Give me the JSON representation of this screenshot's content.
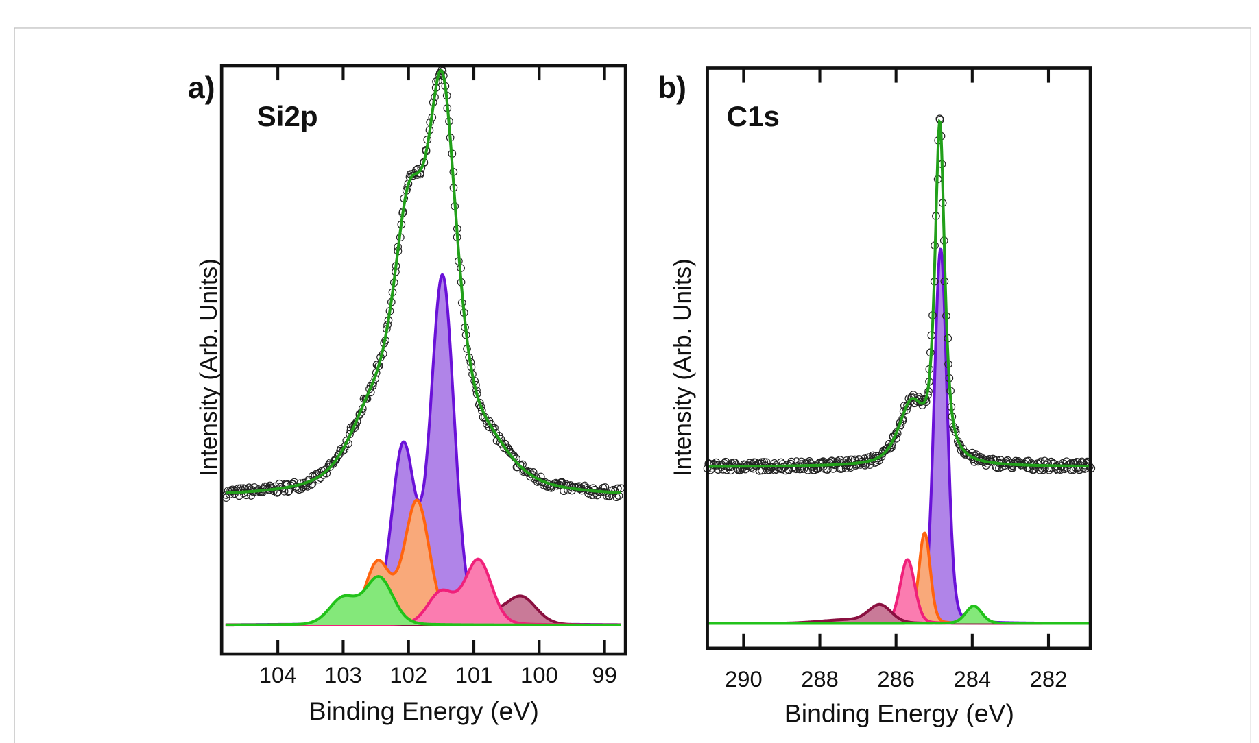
{
  "chart_data": [
    {
      "type": "line",
      "panel_label": "a)",
      "title": "Si2p",
      "xlabel": "Binding Energy (eV)",
      "ylabel": "Intensity (Arb. Units)",
      "xlim": [
        104.86,
        98.68
      ],
      "ylim": [
        0,
        100
      ],
      "x_reversed": true,
      "grid": false,
      "xticks": [
        "104",
        "103",
        "102",
        "101",
        "100",
        "99"
      ],
      "xtick_values": [
        104,
        103,
        102,
        101,
        100,
        99
      ],
      "envelope": {
        "color": "#22a01a",
        "offset": 26.6,
        "peaks": [
          {
            "center": 101.48,
            "amplitude": 62,
            "fwhm": 0.55,
            "eta": 0.6
          },
          {
            "center": 102.0,
            "amplitude": 40,
            "fwhm": 0.6,
            "eta": 0.6
          },
          {
            "center": 102.6,
            "amplitude": 10,
            "fwhm": 0.8,
            "eta": 0.6
          },
          {
            "center": 100.8,
            "amplitude": 6,
            "fwhm": 0.9,
            "eta": 0.6
          }
        ],
        "x_range": [
          104.8,
          98.75
        ]
      },
      "components_baseline": 4.9,
      "components": [
        {
          "stroke": "#6a12d8",
          "fill": "#b084e8",
          "peaks": [
            {
              "center": 101.48,
              "amplitude": 59,
              "fwhm": 0.42
            },
            {
              "center": 102.08,
              "amplitude": 30,
              "fwhm": 0.42
            }
          ]
        },
        {
          "stroke": "#ff640f",
          "fill": "#f9a97a",
          "peaks": [
            {
              "center": 101.87,
              "amplitude": 21,
              "fwhm": 0.45
            },
            {
              "center": 102.47,
              "amplitude": 10.5,
              "fwhm": 0.45
            }
          ]
        },
        {
          "stroke": "#8a1040",
          "fill": "#c97a98",
          "peaks": [
            {
              "center": 100.28,
              "amplitude": 4.8,
              "fwhm": 0.55
            },
            {
              "center": 100.85,
              "amplitude": 2.2,
              "fwhm": 0.55
            }
          ]
        },
        {
          "stroke": "#f0207a",
          "fill": "#fb7cb0",
          "peaks": [
            {
              "center": 100.93,
              "amplitude": 11,
              "fwhm": 0.48
            },
            {
              "center": 101.5,
              "amplitude": 5.5,
              "fwhm": 0.48
            }
          ]
        },
        {
          "stroke": "#22c21a",
          "fill": "#84e87a",
          "peaks": [
            {
              "center": 102.45,
              "amplitude": 8,
              "fwhm": 0.5
            },
            {
              "center": 103.0,
              "amplitude": 4.5,
              "fwhm": 0.5
            }
          ]
        }
      ]
    },
    {
      "type": "line",
      "panel_label": "b)",
      "title": "C1s",
      "xlabel": "Binding Energy (eV)",
      "ylabel": "Intensity (Arb. Units)",
      "xlim": [
        290.95,
        280.9
      ],
      "ylim": [
        0,
        100
      ],
      "x_reversed": true,
      "grid": false,
      "xticks": [
        "290",
        "288",
        "286",
        "284",
        "282"
      ],
      "xtick_values": [
        290,
        288,
        286,
        284,
        282
      ],
      "envelope": {
        "color": "#22a01a",
        "offset": 31.3,
        "peaks": [
          {
            "center": 284.85,
            "amplitude": 58,
            "fwhm": 0.3,
            "eta": 0.75
          },
          {
            "center": 285.6,
            "amplitude": 10,
            "fwhm": 0.8,
            "eta": 0.6
          }
        ],
        "x_range": [
          290.95,
          280.9
        ]
      },
      "components_baseline": 4.3,
      "components": [
        {
          "stroke": "#6a12d8",
          "fill": "#b084e8",
          "peaks": [
            {
              "center": 284.83,
              "amplitude": 64.6,
              "fwhm": 0.4
            }
          ]
        },
        {
          "stroke": "#ff640f",
          "fill": "#f9a97a",
          "peaks": [
            {
              "center": 285.25,
              "amplitude": 15.6,
              "fwhm": 0.35
            }
          ]
        },
        {
          "stroke": "#f0207a",
          "fill": "#fb7cb0",
          "peaks": [
            {
              "center": 285.7,
              "amplitude": 11,
              "fwhm": 0.45
            }
          ]
        },
        {
          "stroke": "#8a1040",
          "fill": "#c97a98",
          "peaks": [
            {
              "center": 286.42,
              "amplitude": 3.0,
              "fwhm": 0.7
            },
            {
              "center": 287.3,
              "amplitude": 0.6,
              "fwhm": 1.6
            }
          ]
        },
        {
          "stroke": "#22c21a",
          "fill": "#84e87a",
          "peaks": [
            {
              "center": 283.96,
              "amplitude": 3.0,
              "fwhm": 0.5
            }
          ]
        }
      ]
    }
  ]
}
